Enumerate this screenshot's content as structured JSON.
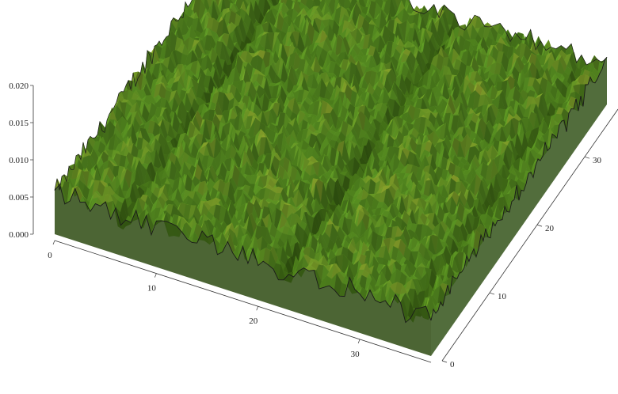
{
  "chart_data": {
    "type": "surface3d",
    "title": "",
    "xlabel": "",
    "ylabel": "",
    "zlabel": "",
    "x_ticks": [
      "0",
      "10",
      "20",
      "30"
    ],
    "y_ticks": [
      "0",
      "10",
      "20",
      "30"
    ],
    "z_ticks": [
      "0.000",
      "0.005",
      "0.010",
      "0.015",
      "0.020"
    ],
    "x_range": [
      0,
      37
    ],
    "y_range": [
      0,
      37
    ],
    "z_range": [
      0,
      0.02
    ],
    "surface": {
      "base_height": 0.004,
      "roughness_amplitude": 0.0035,
      "grooves": [
        {
          "orientation": "along-y",
          "x": 6.5,
          "depth": 0.002
        },
        {
          "orientation": "along-y",
          "x": 22.5,
          "depth": 0.002
        },
        {
          "orientation": "along-y",
          "x": 35.0,
          "depth": 0.0015
        }
      ],
      "color_low": "#3f6e10",
      "color_mid": "#6fb52a",
      "color_high": "#d4d23c",
      "edge_color": "#1a1a1a"
    }
  }
}
